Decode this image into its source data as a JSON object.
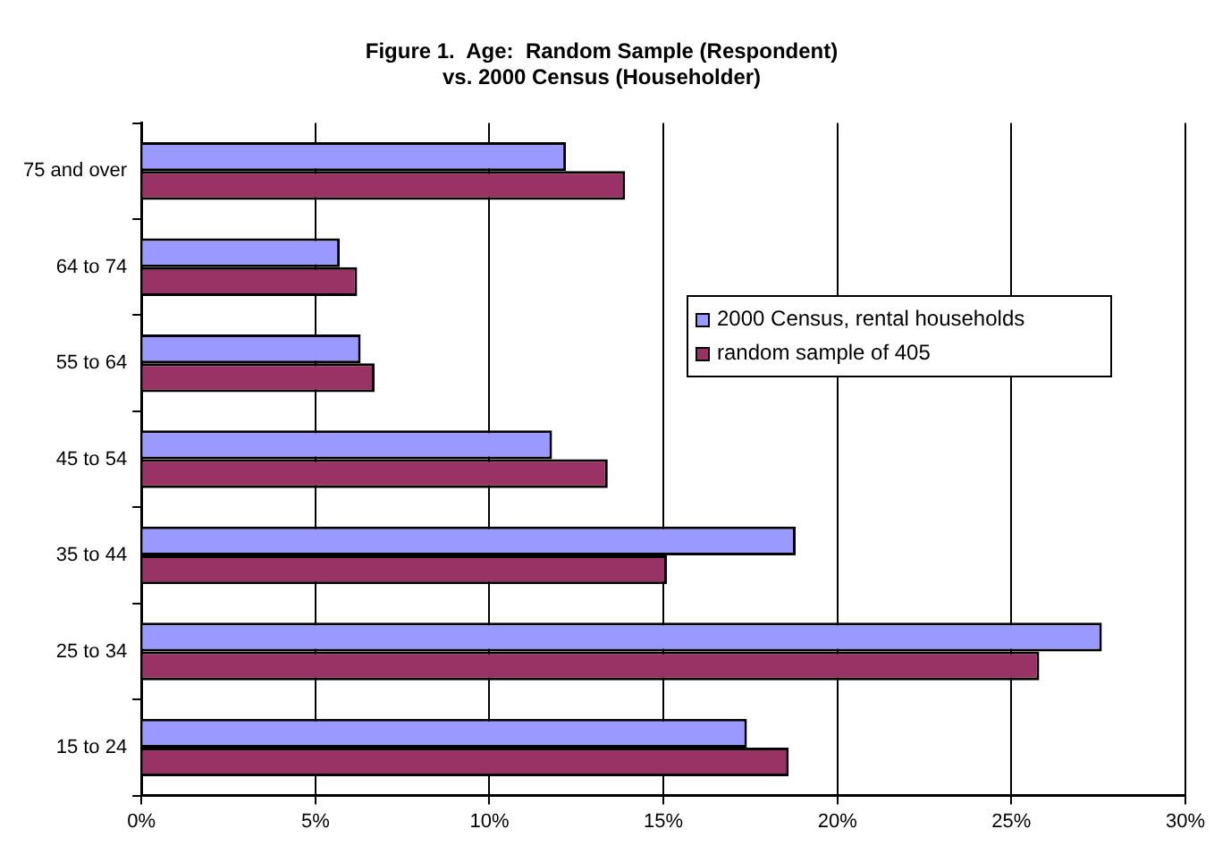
{
  "chart_data": {
    "type": "bar",
    "orientation": "horizontal",
    "title": "Figure 1.  Age:  Random Sample (Respondent)\nvs. 2000 Census (Householder)",
    "categories": [
      "75 and over",
      "64 to 74",
      "55 to 64",
      "45 to 54",
      "35 to 44",
      "25 to 34",
      "15 to 24"
    ],
    "series": [
      {
        "name": "2000 Census, rental households",
        "color": "#9999ff",
        "values": [
          12.2,
          5.7,
          6.3,
          11.8,
          18.8,
          27.6,
          17.4
        ]
      },
      {
        "name": "random sample of 405",
        "color": "#993366",
        "values": [
          13.9,
          6.2,
          6.7,
          13.4,
          15.1,
          25.8,
          18.6
        ]
      }
    ],
    "xlim": [
      0,
      30
    ],
    "xticks": [
      {
        "value": 0,
        "label": "0%"
      },
      {
        "value": 5,
        "label": "5%"
      },
      {
        "value": 10,
        "label": "10%"
      },
      {
        "value": 15,
        "label": "15%"
      },
      {
        "value": 20,
        "label": "20%"
      },
      {
        "value": 25,
        "label": "25%"
      },
      {
        "value": 30,
        "label": "30%"
      }
    ],
    "grid": "x",
    "legend": "right"
  }
}
